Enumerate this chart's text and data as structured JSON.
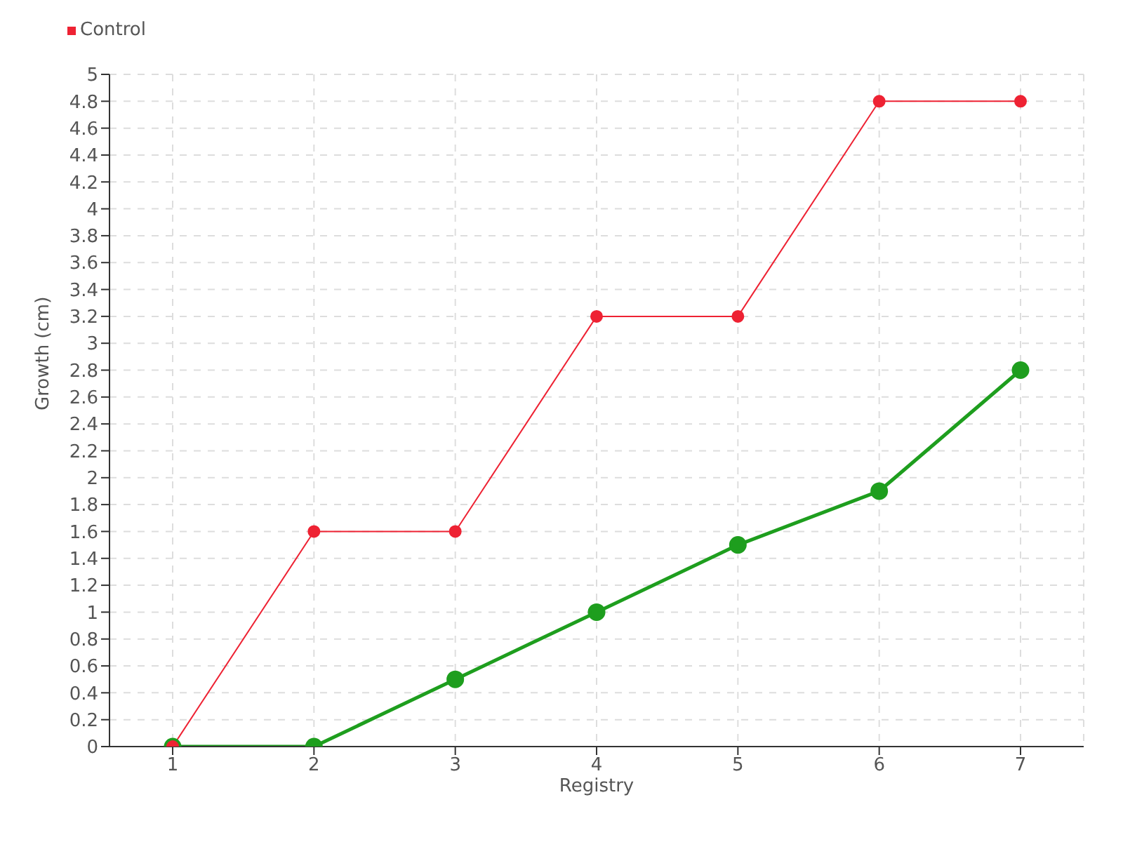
{
  "chart_data": {
    "type": "line",
    "xlabel": "Registry",
    "ylabel": "Growth (cm)",
    "categories": [
      "1",
      "2",
      "3",
      "4",
      "5",
      "6",
      "7"
    ],
    "series": [
      {
        "color": "#1e9e1e",
        "values": [
          0,
          0,
          0.5,
          1,
          1.5,
          1.9,
          2.8
        ]
      },
      {
        "name": "Control",
        "color": "#ee2233",
        "values": [
          0,
          1.6,
          1.6,
          3.2,
          3.2,
          4.8,
          4.8
        ]
      }
    ],
    "ylim": [
      0,
      5
    ],
    "yticks": [
      0,
      0.2,
      0.4,
      0.6,
      0.8,
      1,
      1.2,
      1.4,
      1.6,
      1.8,
      2,
      2.2,
      2.4,
      2.6,
      2.8,
      3,
      3.2,
      3.4,
      3.6,
      3.8,
      4,
      4.2,
      4.4,
      4.6,
      4.8,
      5
    ],
    "grid": true,
    "legend": "top left",
    "marker": "circle",
    "line_style": "solid"
  }
}
